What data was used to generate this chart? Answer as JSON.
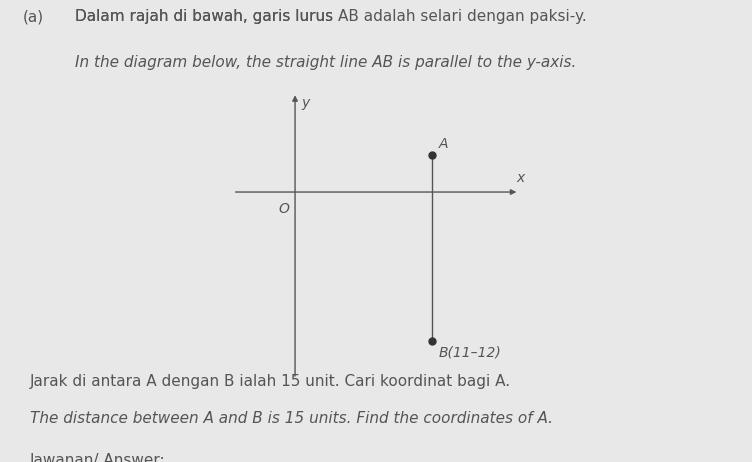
{
  "background_color": "#e8e8e8",
  "title_malay": "Dalam rajah di bawah, garis lurus ",
  "title_malay_AB": "AB",
  "title_malay_rest": " adalah selari dengan paksi-",
  "title_malay_y": "y",
  "title_malay_end": ".",
  "title_english": "In the diagram below, the straight line ",
  "title_english_AB": "AB",
  "title_english_rest": " is parallel to the ",
  "title_english_yaxis": "y",
  "title_english_end": "-axis.",
  "question_malay_1": "Jarak di antara ",
  "question_malay_A": "A",
  "question_malay_2": " dengan ",
  "question_malay_B": "B",
  "question_malay_3": " ialah 15 unit. Cari koordinat bagi ",
  "question_malay_A2": "A",
  "question_malay_end": ".",
  "question_english": "The distance between ",
  "question_english_A": "A",
  "question_english_2": " and ",
  "question_english_B": "B",
  "question_english_3": " is 15 units. Find the coordinates of ",
  "question_english_A2": "A",
  "question_english_end": ".",
  "answer_label": "Jawanan/ ",
  "answer_label_italic": "Answer",
  "answer_label_end": ":",
  "prefix_label": "(a)",
  "point_A": [
    11,
    3
  ],
  "point_B": [
    11,
    -12
  ],
  "label_A": "A",
  "label_B": "B(11–12)",
  "origin_label": "O",
  "x_axis_label": "x",
  "y_axis_label": "y",
  "axis_xlim": [
    -5,
    18
  ],
  "axis_ylim": [
    -15,
    8
  ],
  "line_color": "#555555",
  "point_color": "#333333",
  "text_color": "#555555",
  "font_size_labels": 10,
  "font_size_title": 11,
  "font_size_question": 11
}
